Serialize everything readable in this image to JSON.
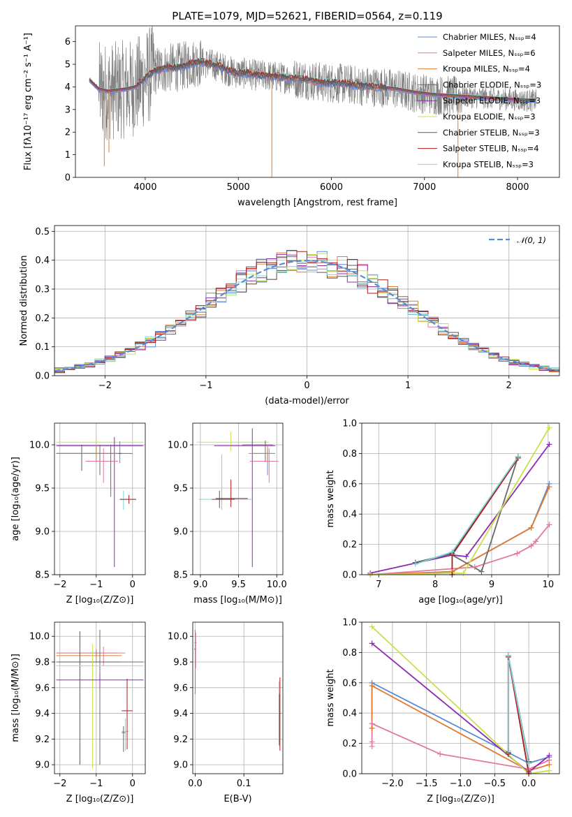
{
  "title": "PLATE=1079, MJD=52621, FIBERID=0564, z=0.119",
  "colors": {
    "chabrier_miles": "#5b8bd6",
    "salpeter_miles": "#e0799f",
    "kroupa_miles": "#e07b2f",
    "chabrier_elodie": "#6b6b6b",
    "salpeter_elodie": "#8e2ab0",
    "kroupa_elodie": "#c8e04a",
    "chabrier_stelib": "#5a5a5a",
    "salpeter_stelib": "#b01818",
    "kroupa_stelib": "#7fd3d6"
  },
  "chart_data": [
    {
      "type": "line",
      "name": "spectrum",
      "xlabel": "wavelength [Angstrom, rest frame]",
      "ylabel": "Flux [fλ10⁻¹⁷ erg cm⁻² s⁻¹ A⁻¹]",
      "xlim": [
        3250,
        8450
      ],
      "ylim": [
        0,
        6.7
      ],
      "xticks": [
        4000,
        5000,
        6000,
        7000,
        8000
      ],
      "yticks": [
        0,
        1,
        2,
        3,
        4,
        5,
        6
      ],
      "grid": false,
      "legend_position": "upper-right",
      "legend": [
        "Chabrier MILES, Nₛₛₚ=4",
        "Salpeter MILES, Nₛₛₚ=6",
        "Kroupa MILES, Nₛₛₚ=4",
        "Chabrier ELODIE, Nₛₛₚ=3",
        "Salpeter ELODIE, Nₛₛₚ=3",
        "Kroupa ELODIE, Nₛₛₚ=3",
        "Chabrier STELIB, Nₛₛₚ=3",
        "Salpeter STELIB, Nₛₛₚ=4",
        "Kroupa STELIB, Nₛₛₚ=3"
      ],
      "continuum": [
        [
          3400,
          4.3
        ],
        [
          3500,
          3.9
        ],
        [
          3600,
          3.8
        ],
        [
          3700,
          3.85
        ],
        [
          3800,
          3.9
        ],
        [
          3900,
          4.0
        ],
        [
          4000,
          4.4
        ],
        [
          4100,
          4.7
        ],
        [
          4200,
          4.8
        ],
        [
          4300,
          4.85
        ],
        [
          4400,
          4.9
        ],
        [
          4500,
          5.05
        ],
        [
          4600,
          5.1
        ],
        [
          4700,
          5.0
        ],
        [
          4800,
          4.9
        ],
        [
          4900,
          4.7
        ],
        [
          5000,
          4.6
        ],
        [
          5100,
          4.6
        ],
        [
          5200,
          4.5
        ],
        [
          5300,
          4.5
        ],
        [
          5500,
          4.4
        ],
        [
          5700,
          4.35
        ],
        [
          5900,
          4.2
        ],
        [
          6100,
          4.15
        ],
        [
          6300,
          4.05
        ],
        [
          6500,
          4.0
        ],
        [
          6700,
          3.9
        ],
        [
          6900,
          3.75
        ],
        [
          7100,
          3.65
        ],
        [
          7300,
          3.6
        ],
        [
          7500,
          3.55
        ],
        [
          7700,
          3.5
        ],
        [
          7900,
          3.45
        ],
        [
          8100,
          3.4
        ],
        [
          8200,
          3.4
        ]
      ]
    },
    {
      "type": "histogram",
      "name": "residuals",
      "xlabel": "(data-model)/error",
      "ylabel": "Normed distribution",
      "xlim": [
        -2.5,
        2.5
      ],
      "ylim": [
        0,
        0.52
      ],
      "xticks": [
        -2,
        -1,
        0,
        1,
        2
      ],
      "yticks": [
        0.0,
        0.1,
        0.2,
        0.3,
        0.4,
        0.5
      ],
      "grid": true,
      "legend_position": "upper-right",
      "legend": [
        "𝒩(0, 1)"
      ],
      "bin_width": 0.1
    },
    {
      "type": "scatter",
      "name": "age-vs-metallicity",
      "xlabel": "Z [log₁₀(Z/Z⊙)]",
      "ylabel": "age  [log₁₀(age/yr)]",
      "xlim": [
        -2.15,
        0.35
      ],
      "ylim": [
        8.5,
        10.25
      ],
      "xticks": [
        -2,
        -1,
        0
      ],
      "yticks": [
        8.5,
        9.0,
        9.5,
        10.0
      ],
      "grid": true
    },
    {
      "type": "scatter",
      "name": "age-vs-mass",
      "xlabel": "mass [log₁₀(M/M⊙)]",
      "ylabel": "",
      "xlim": [
        8.9,
        10.08
      ],
      "ylim": [
        8.5,
        10.25
      ],
      "xticks": [
        9.0,
        9.5,
        10.0
      ],
      "yticks": [
        8.5,
        9.0,
        9.5,
        10.0
      ],
      "grid": true
    },
    {
      "type": "line",
      "name": "mass-weight-vs-age",
      "xlabel": "age  [log₁₀(age/yr)]",
      "ylabel": "mass weight",
      "xlim": [
        6.7,
        10.2
      ],
      "ylim": [
        0,
        1.0
      ],
      "xticks": [
        7,
        8,
        9,
        10
      ],
      "yticks": [
        0.0,
        0.2,
        0.4,
        0.6,
        0.8,
        1.0
      ],
      "grid": true,
      "series": [
        {
          "color": "#5b8bd6",
          "x": [
            6.85,
            8.3,
            9.7,
            10.02
          ],
          "y": [
            0.0,
            0.02,
            0.31,
            0.6
          ]
        },
        {
          "color": "#e0799f",
          "x": [
            6.85,
            8.7,
            9.45,
            9.7,
            9.78,
            10.02
          ],
          "y": [
            0.0,
            0.05,
            0.14,
            0.19,
            0.22,
            0.33
          ]
        },
        {
          "color": "#e07b2f",
          "x": [
            6.85,
            8.3,
            9.7,
            10.02
          ],
          "y": [
            0.0,
            0.02,
            0.31,
            0.58
          ]
        },
        {
          "color": "#6b6b6b",
          "x": [
            8.3,
            8.82,
            9.47
          ],
          "y": [
            0.13,
            0.02,
            0.78
          ]
        },
        {
          "color": "#8e2ab0",
          "x": [
            6.85,
            8.3,
            8.55,
            10.02
          ],
          "y": [
            0.01,
            0.13,
            0.12,
            0.86
          ]
        },
        {
          "color": "#c8e04a",
          "x": [
            6.85,
            8.5,
            10.02
          ],
          "y": [
            0.0,
            0.01,
            0.97
          ]
        },
        {
          "color": "#5a5a5a",
          "x": [
            7.65,
            8.3,
            9.47
          ],
          "y": [
            0.08,
            0.14,
            0.78
          ]
        },
        {
          "color": "#b01818",
          "x": [
            8.3,
            8.3,
            9.47
          ],
          "y": [
            0.0,
            0.13,
            0.77
          ]
        },
        {
          "color": "#7fd3d6",
          "x": [
            7.65,
            8.3,
            9.47
          ],
          "y": [
            0.07,
            0.15,
            0.78
          ]
        }
      ]
    },
    {
      "type": "scatter",
      "name": "mass-vs-metallicity",
      "xlabel": "Z [log₁₀(Z/Z⊙)]",
      "ylabel": "mass [log₁₀(M/M⊙)]",
      "xlim": [
        -2.15,
        0.35
      ],
      "ylim": [
        8.93,
        10.11
      ],
      "xticks": [
        -2,
        -1,
        0
      ],
      "yticks": [
        9.0,
        9.2,
        9.4,
        9.6,
        9.8,
        10.0
      ],
      "grid": true
    },
    {
      "type": "scatter",
      "name": "mass-vs-ebv",
      "xlabel": "E(B-V)",
      "ylabel": "",
      "xlim": [
        -0.005,
        0.18
      ],
      "ylim": [
        8.93,
        10.11
      ],
      "xticks": [
        0.0,
        0.1
      ],
      "yticks": [
        9.0,
        9.2,
        9.4,
        9.6,
        9.8,
        10.0
      ],
      "grid": true
    },
    {
      "type": "line",
      "name": "mass-weight-vs-metallicity",
      "xlabel": "Z [log₁₀(Z/Z⊙)]",
      "ylabel": "mass weight",
      "xlim": [
        -2.45,
        0.45
      ],
      "ylim": [
        0,
        1.0
      ],
      "xticks": [
        -2.0,
        -1.5,
        -1.0,
        -0.5,
        0.0
      ],
      "yticks": [
        0.0,
        0.2,
        0.4,
        0.6,
        0.8,
        1.0
      ],
      "grid": true,
      "series": [
        {
          "color": "#5b8bd6",
          "x": [
            -2.3,
            -2.3,
            0.0,
            0.3
          ],
          "y": [
            0.3,
            0.6,
            0.07,
            0.11
          ]
        },
        {
          "color": "#e0799f",
          "x": [
            -2.3,
            -2.3,
            -2.3,
            -1.3,
            0.0,
            0.3
          ],
          "y": [
            0.18,
            0.21,
            0.33,
            0.13,
            0.03,
            0.09
          ]
        },
        {
          "color": "#e07b2f",
          "x": [
            -2.3,
            -2.3,
            0.0,
            0.3
          ],
          "y": [
            0.3,
            0.58,
            0.02,
            0.06
          ]
        },
        {
          "color": "#6b6b6b",
          "x": [
            -0.3,
            -0.3,
            0.0
          ],
          "y": [
            0.13,
            0.78,
            0.07
          ]
        },
        {
          "color": "#8e2ab0",
          "x": [
            -2.3,
            0.0,
            0.3
          ],
          "y": [
            0.86,
            0.01,
            0.12
          ]
        },
        {
          "color": "#c8e04a",
          "x": [
            -2.3,
            0.0,
            0.3
          ],
          "y": [
            0.97,
            0.0,
            0.02
          ]
        },
        {
          "color": "#5a5a5a",
          "x": [
            -0.3,
            -0.3,
            0.0
          ],
          "y": [
            0.14,
            0.78,
            0.08
          ]
        },
        {
          "color": "#b01818",
          "x": [
            -0.3,
            -0.3,
            0.0
          ],
          "y": [
            0.13,
            0.77,
            0.0
          ]
        },
        {
          "color": "#7fd3d6",
          "x": [
            -0.3,
            -0.3,
            0.0
          ],
          "y": [
            0.15,
            0.78,
            0.07
          ]
        }
      ]
    }
  ]
}
